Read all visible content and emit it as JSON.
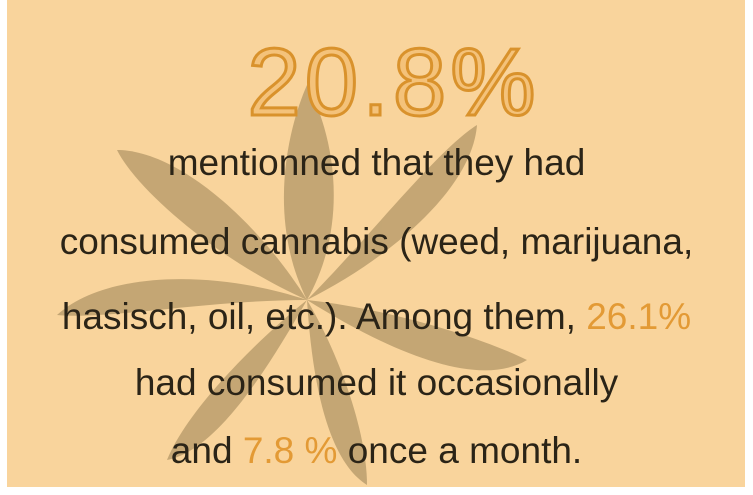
{
  "headline": "20.8%",
  "lines": [
    [
      "mentionned that they had"
    ],
    [
      "consumed cannabis (weed, marijuana,"
    ],
    [
      "hasisch, oil, etc.). Among them, ",
      "26.1%"
    ],
    [
      "had consumed it occasionally"
    ],
    [
      "and ",
      "7.8 %",
      " once a month."
    ]
  ]
}
